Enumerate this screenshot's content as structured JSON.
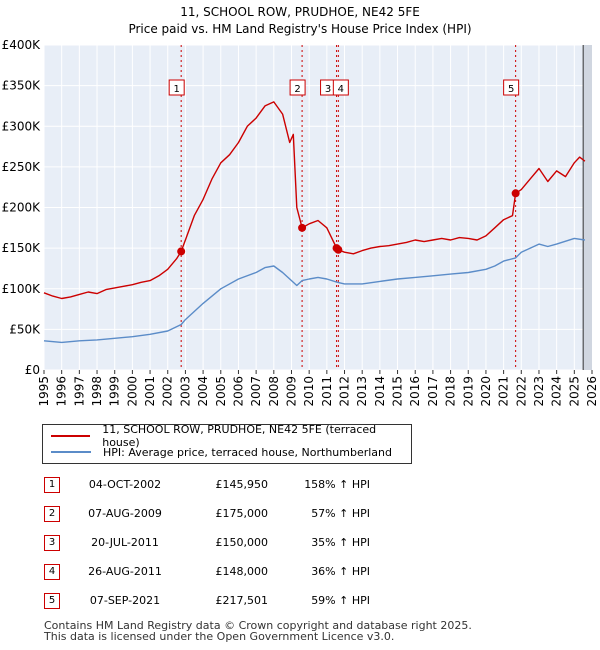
{
  "chart_data": {
    "type": "line",
    "title": "11, SCHOOL ROW, PRUDHOE, NE42 5FE",
    "subtitle": "Price paid vs. HM Land Registry's House Price Index (HPI)",
    "xlim": [
      1995,
      2026
    ],
    "ylim": [
      0,
      400000
    ],
    "x_ticks": [
      "1995",
      "1996",
      "1997",
      "1998",
      "1999",
      "2000",
      "2001",
      "2002",
      "2003",
      "2004",
      "2005",
      "2006",
      "2007",
      "2008",
      "2009",
      "2010",
      "2011",
      "2012",
      "2013",
      "2014",
      "2015",
      "2016",
      "2017",
      "2018",
      "2019",
      "2020",
      "2021",
      "2022",
      "2023",
      "2024",
      "2025",
      "2026"
    ],
    "y_ticks": [
      {
        "value": 0,
        "label": "£0"
      },
      {
        "value": 50000,
        "label": "£50K"
      },
      {
        "value": 100000,
        "label": "£100K"
      },
      {
        "value": 150000,
        "label": "£150K"
      },
      {
        "value": 200000,
        "label": "£200K"
      },
      {
        "value": 250000,
        "label": "£250K"
      },
      {
        "value": 300000,
        "label": "£300K"
      },
      {
        "value": 350000,
        "label": "£350K"
      },
      {
        "value": 400000,
        "label": "£400K"
      }
    ],
    "series": [
      {
        "name": "11, SCHOOL ROW, PRUDHOE, NE42 5FE (terraced house)",
        "color": "#cc0000",
        "points": [
          [
            1995.0,
            95000
          ],
          [
            1995.5,
            91000
          ],
          [
            1996.0,
            88000
          ],
          [
            1996.5,
            90000
          ],
          [
            1997.0,
            93000
          ],
          [
            1997.5,
            96000
          ],
          [
            1998.0,
            94000
          ],
          [
            1998.5,
            99000
          ],
          [
            1999.0,
            101000
          ],
          [
            1999.5,
            103000
          ],
          [
            2000.0,
            105000
          ],
          [
            2000.5,
            108000
          ],
          [
            2001.0,
            110000
          ],
          [
            2001.5,
            116000
          ],
          [
            2002.0,
            124000
          ],
          [
            2002.5,
            137000
          ],
          [
            2002.76,
            145950
          ],
          [
            2003.0,
            160000
          ],
          [
            2003.5,
            190000
          ],
          [
            2004.0,
            210000
          ],
          [
            2004.5,
            235000
          ],
          [
            2005.0,
            255000
          ],
          [
            2005.5,
            265000
          ],
          [
            2006.0,
            280000
          ],
          [
            2006.5,
            300000
          ],
          [
            2007.0,
            310000
          ],
          [
            2007.5,
            325000
          ],
          [
            2008.0,
            330000
          ],
          [
            2008.5,
            315000
          ],
          [
            2008.9,
            280000
          ],
          [
            2009.1,
            290000
          ],
          [
            2009.3,
            200000
          ],
          [
            2009.6,
            175000
          ],
          [
            2010.0,
            180000
          ],
          [
            2010.5,
            184000
          ],
          [
            2011.0,
            175000
          ],
          [
            2011.55,
            150000
          ],
          [
            2011.65,
            148000
          ],
          [
            2012.0,
            145000
          ],
          [
            2012.5,
            143000
          ],
          [
            2013.0,
            147000
          ],
          [
            2013.5,
            150000
          ],
          [
            2014.0,
            152000
          ],
          [
            2014.5,
            153000
          ],
          [
            2015.0,
            155000
          ],
          [
            2015.5,
            157000
          ],
          [
            2016.0,
            160000
          ],
          [
            2016.5,
            158000
          ],
          [
            2017.0,
            160000
          ],
          [
            2017.5,
            162000
          ],
          [
            2018.0,
            160000
          ],
          [
            2018.5,
            163000
          ],
          [
            2019.0,
            162000
          ],
          [
            2019.5,
            160000
          ],
          [
            2020.0,
            165000
          ],
          [
            2020.5,
            175000
          ],
          [
            2021.0,
            185000
          ],
          [
            2021.5,
            190000
          ],
          [
            2021.68,
            217501
          ],
          [
            2022.0,
            222000
          ],
          [
            2022.5,
            235000
          ],
          [
            2023.0,
            248000
          ],
          [
            2023.5,
            232000
          ],
          [
            2024.0,
            245000
          ],
          [
            2024.5,
            238000
          ],
          [
            2025.0,
            255000
          ],
          [
            2025.3,
            262000
          ],
          [
            2025.6,
            257000
          ]
        ]
      },
      {
        "name": "HPI: Average price, terraced house, Northumberland",
        "color": "#5b8cc8",
        "points": [
          [
            1995.0,
            36000
          ],
          [
            1996.0,
            34000
          ],
          [
            1997.0,
            36000
          ],
          [
            1998.0,
            37000
          ],
          [
            1999.0,
            39000
          ],
          [
            2000.0,
            41000
          ],
          [
            2001.0,
            44000
          ],
          [
            2002.0,
            48000
          ],
          [
            2002.76,
            56000
          ],
          [
            2003.0,
            62000
          ],
          [
            2004.0,
            82000
          ],
          [
            2005.0,
            100000
          ],
          [
            2006.0,
            112000
          ],
          [
            2007.0,
            120000
          ],
          [
            2007.5,
            126000
          ],
          [
            2008.0,
            128000
          ],
          [
            2008.5,
            120000
          ],
          [
            2009.0,
            110000
          ],
          [
            2009.3,
            104000
          ],
          [
            2009.6,
            110000
          ],
          [
            2010.0,
            112000
          ],
          [
            2010.5,
            114000
          ],
          [
            2011.0,
            112000
          ],
          [
            2011.6,
            108000
          ],
          [
            2012.0,
            106000
          ],
          [
            2013.0,
            106000
          ],
          [
            2014.0,
            109000
          ],
          [
            2015.0,
            112000
          ],
          [
            2016.0,
            114000
          ],
          [
            2017.0,
            116000
          ],
          [
            2018.0,
            118000
          ],
          [
            2019.0,
            120000
          ],
          [
            2020.0,
            124000
          ],
          [
            2020.5,
            128000
          ],
          [
            2021.0,
            134000
          ],
          [
            2021.68,
            138000
          ],
          [
            2022.0,
            145000
          ],
          [
            2023.0,
            155000
          ],
          [
            2023.5,
            152000
          ],
          [
            2024.0,
            155000
          ],
          [
            2025.0,
            162000
          ],
          [
            2025.6,
            160000
          ]
        ]
      }
    ],
    "sales": [
      {
        "num": "1",
        "date": "04-OCT-2002",
        "price": "£145,950",
        "hpi": "158% ↑ HPI",
        "x": 2002.76,
        "y": 145950
      },
      {
        "num": "2",
        "date": "07-AUG-2009",
        "price": "£175,000",
        "hpi": "57% ↑ HPI",
        "x": 2009.6,
        "y": 175000
      },
      {
        "num": "3",
        "date": "20-JUL-2011",
        "price": "£150,000",
        "hpi": "35% ↑ HPI",
        "x": 2011.55,
        "y": 150000
      },
      {
        "num": "4",
        "date": "26-AUG-2011",
        "price": "£148,000",
        "hpi": "36% ↑ HPI",
        "x": 2011.65,
        "y": 148000
      },
      {
        "num": "5",
        "date": "07-SEP-2021",
        "price": "£217,501",
        "hpi": "59% ↑ HPI",
        "x": 2021.68,
        "y": 217501
      }
    ],
    "legend_position": "below",
    "future_shade_from": 2025.5
  },
  "footer": {
    "line1": "Contains HM Land Registry data © Crown copyright and database right 2025.",
    "line2": "This data is licensed under the Open Government Licence v3.0."
  }
}
